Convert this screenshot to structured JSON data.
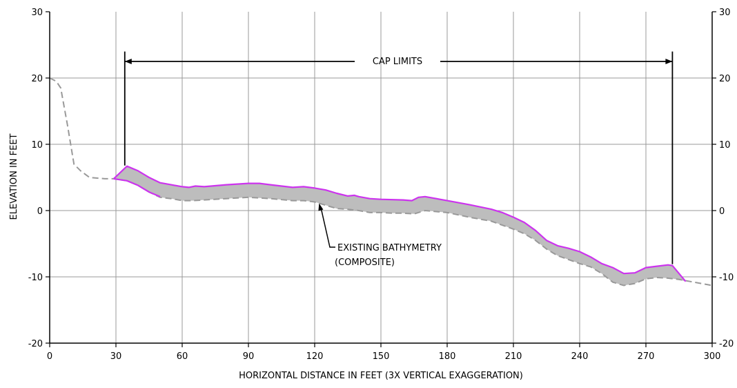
{
  "chart_data": {
    "type": "area",
    "xlabel": "HORIZONTAL DISTANCE IN FEET (3X VERTICAL EXAGGERATION)",
    "ylabel": "ELEVATION IN FEET",
    "xlim": [
      0,
      300
    ],
    "ylim": [
      -20,
      30
    ],
    "x_ticks": [
      0,
      30,
      60,
      90,
      120,
      150,
      180,
      210,
      240,
      270,
      300
    ],
    "x_tick_labels": [
      "0",
      "30",
      "60",
      "90",
      "120",
      "150",
      "180",
      "210",
      "240",
      "270",
      "300"
    ],
    "y_ticks": [
      30,
      20,
      10,
      0,
      -10,
      -20
    ],
    "y_tick_labels": [
      "30",
      "20",
      "10",
      "0",
      "-10",
      "-20"
    ],
    "grid": true,
    "colors": {
      "cap": "#cc33ee",
      "fill": "#bdbdbd",
      "bathymetry": "#999999",
      "grid": "#999999"
    },
    "series": [
      {
        "name": "EXISTING BATHYMETRY (COMPOSITE)",
        "style": "dashed",
        "x": [
          0,
          3,
          5,
          8,
          11,
          14,
          18,
          25,
          29,
          35,
          40,
          45,
          50,
          55,
          60,
          65,
          70,
          80,
          90,
          100,
          110,
          115,
          120,
          125,
          130,
          135,
          140,
          145,
          150,
          155,
          160,
          165,
          170,
          180,
          190,
          200,
          210,
          215,
          220,
          225,
          230,
          235,
          240,
          245,
          250,
          255,
          260,
          265,
          270,
          275,
          280,
          285,
          290,
          300
        ],
        "y": [
          20,
          19.5,
          18.5,
          13,
          7,
          6,
          5,
          4.8,
          4.8,
          4.5,
          3.8,
          2.8,
          2,
          1.8,
          1.5,
          1.5,
          1.6,
          1.8,
          2,
          1.8,
          1.5,
          1.5,
          1.3,
          0.8,
          0.3,
          0.2,
          0,
          -0.3,
          -0.3,
          -0.4,
          -0.4,
          -0.5,
          0,
          -0.3,
          -1,
          -1.6,
          -2.8,
          -3.5,
          -4.5,
          -5.8,
          -6.8,
          -7.4,
          -8,
          -8.5,
          -9.5,
          -10.8,
          -11.3,
          -11,
          -10.3,
          -10.1,
          -10.2,
          -10.4,
          -10.7,
          -11.3
        ]
      },
      {
        "name": "CAP",
        "x": [
          29,
          35,
          40,
          45,
          50,
          55,
          60,
          63,
          66,
          70,
          80,
          90,
          95,
          100,
          110,
          115,
          120,
          125,
          130,
          135,
          138,
          140,
          145,
          150,
          160,
          164,
          167,
          170,
          180,
          190,
          200,
          205,
          210,
          215,
          220,
          225,
          230,
          235,
          240,
          245,
          250,
          255,
          260,
          265,
          270,
          275,
          280,
          282,
          288
        ],
        "y": [
          4.8,
          6.7,
          6,
          5,
          4.2,
          3.9,
          3.6,
          3.5,
          3.7,
          3.6,
          3.9,
          4.1,
          4.1,
          3.9,
          3.5,
          3.6,
          3.4,
          3.1,
          2.6,
          2.2,
          2.3,
          2.1,
          1.8,
          1.7,
          1.6,
          1.5,
          2,
          2.1,
          1.5,
          0.9,
          0.2,
          -0.3,
          -1,
          -1.8,
          -3,
          -4.5,
          -5.3,
          -5.7,
          -6.2,
          -7,
          -8,
          -8.6,
          -9.5,
          -9.4,
          -8.6,
          -8.4,
          -8.2,
          -8.3,
          -10.7
        ]
      }
    ],
    "annotations": {
      "cap_limits": {
        "label": "CAP LIMITS",
        "x_start": 34,
        "x_end": 282,
        "y": 22.5
      },
      "bathymetry_label_line1": "EXISTING BATHYMETRY",
      "bathymetry_label_line2": "(COMPOSITE)"
    }
  }
}
